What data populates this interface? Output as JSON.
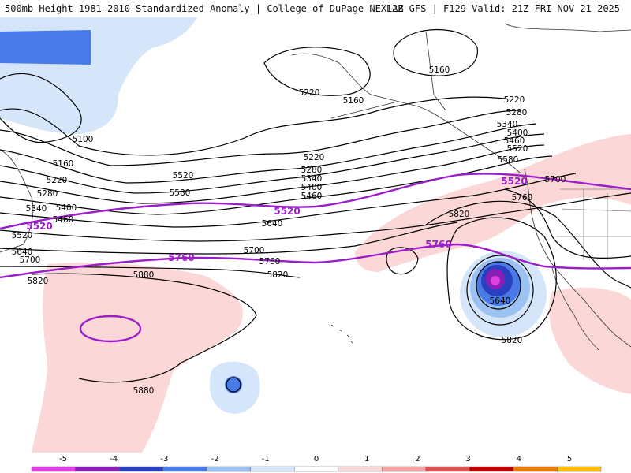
{
  "header": {
    "left": "500mb Height 1981-2010 Standardized Anomaly | College of DuPage NEXLAB",
    "right": "12Z GFS | F129 Valid: 21Z FRI NOV 21 2025"
  },
  "contour_labels": {
    "h5160": "5160",
    "h5100": "5100",
    "h5220": "5220",
    "h5280": "5280",
    "h5340": "5340",
    "h5400": "5400",
    "h5460": "5460",
    "h5520": "5520",
    "h5580": "5580",
    "h5640": "5640",
    "h5700": "5700",
    "h5760": "5760",
    "h5820": "5820",
    "h5880": "5880"
  },
  "legend": {
    "ticks": [
      "-5",
      "-4",
      "-3",
      "-2",
      "-1",
      "0",
      "1",
      "2",
      "3",
      "4",
      "5"
    ],
    "colors": [
      "#e040e0",
      "#8a1fb8",
      "#2a3fbf",
      "#4a7ae8",
      "#9cc2f2",
      "#d6e6fa",
      "#ffffff",
      "#fbd7d7",
      "#f4a6a6",
      "#e05050",
      "#c00000",
      "#f07a00",
      "#ffc000"
    ]
  }
}
